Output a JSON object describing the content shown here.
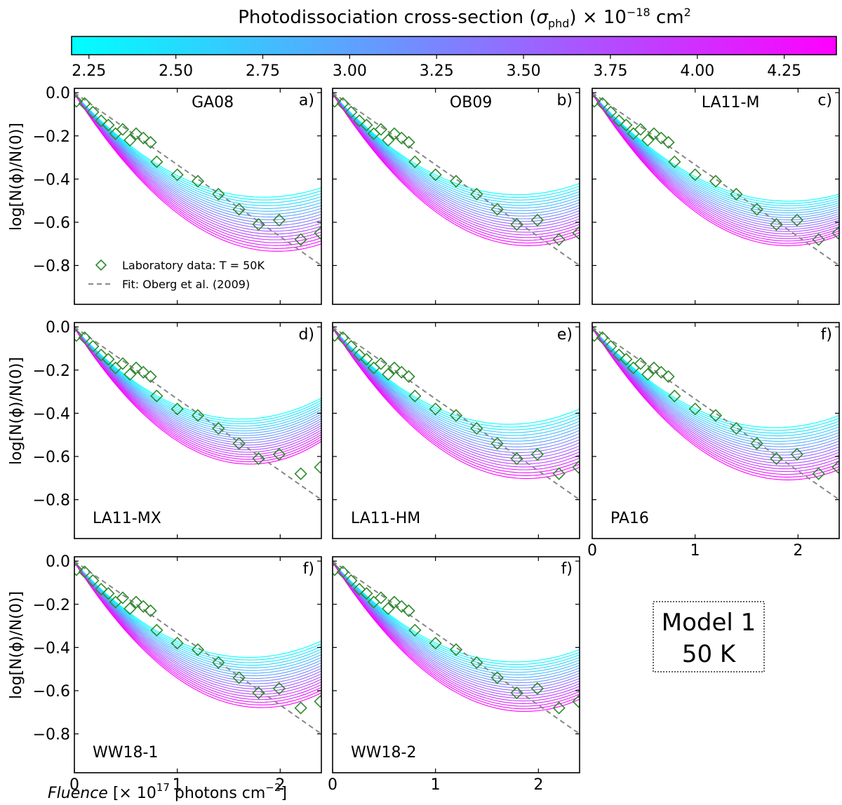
{
  "chart_data": {
    "type": "line",
    "title": "Photodissociation cross-section (σ_phd) × 10⁻¹⁸ cm²",
    "title_parts": {
      "main": "Photodissociation cross-section (",
      "sigma": "σ",
      "sub": "phd",
      "times": ") × 10",
      "exp": "−18",
      "unit": " cm",
      "unit_exp": "2"
    },
    "colorbar": {
      "range": [
        2.2,
        4.4
      ],
      "ticks": [
        "2.25",
        "2.50",
        "2.75",
        "3.00",
        "3.25",
        "3.50",
        "3.75",
        "4.00",
        "4.25"
      ],
      "colors": [
        "#00ffff",
        "#ff00ff"
      ]
    },
    "xlabel": "Fluence [× 10¹⁷ photons cm⁻²]",
    "xlabel_parts": {
      "italic": "Fluence",
      "pre": " [× 10",
      "exp": "17",
      "mid": " photons cm",
      "exp2": "−2",
      "post": "]"
    },
    "ylabel": "log[N(ϕ)/N(0)]",
    "xlim": [
      0,
      2.4
    ],
    "ylim": [
      -0.98,
      0.02
    ],
    "x_ticks": [
      "0",
      "1",
      "2"
    ],
    "y_ticks": [
      "0.0",
      "−0.2",
      "−0.4",
      "−0.6",
      "−0.8"
    ],
    "x_tick_values": [
      0,
      1,
      2
    ],
    "y_tick_values": [
      0.0,
      -0.2,
      -0.4,
      -0.6,
      -0.8
    ],
    "lab_data": {
      "name": "Laboratory data: T = 50K",
      "color": "#2e8b2e",
      "x": [
        0.02,
        0.1,
        0.18,
        0.26,
        0.33,
        0.4,
        0.47,
        0.54,
        0.6,
        0.67,
        0.74,
        0.8,
        1.0,
        1.2,
        1.4,
        1.6,
        1.79,
        1.99,
        2.2,
        2.39
      ],
      "y": [
        -0.04,
        -0.05,
        -0.09,
        -0.13,
        -0.15,
        -0.19,
        -0.17,
        -0.22,
        -0.19,
        -0.21,
        -0.23,
        -0.32,
        -0.38,
        -0.41,
        -0.47,
        -0.54,
        -0.61,
        -0.59,
        -0.68,
        -0.65
      ]
    },
    "fit": {
      "name": "Fit: Oberg et al. (2009)",
      "x": [
        0,
        2.4
      ],
      "y": [
        0.0,
        -0.8
      ],
      "color": "#888888"
    },
    "panels": [
      {
        "name": "GA08",
        "letter": "a)",
        "label_pos": "top",
        "y_end_range": [
          -0.44,
          -0.7
        ]
      },
      {
        "name": "OB09",
        "letter": "b)",
        "label_pos": "top",
        "y_end_range": [
          -0.42,
          -0.66
        ]
      },
      {
        "name": "LA11-M",
        "letter": "c)",
        "label_pos": "top",
        "y_end_range": [
          -0.47,
          -0.66
        ]
      },
      {
        "name": "LA11-MX",
        "letter": "d)",
        "label_pos": "bottom",
        "y_end_range": [
          -0.33,
          -0.53
        ]
      },
      {
        "name": "LA11-HM",
        "letter": "e)",
        "label_pos": "bottom",
        "y_end_range": [
          -0.38,
          -0.65
        ]
      },
      {
        "name": "PA16",
        "letter": "f)",
        "label_pos": "bottom",
        "y_end_range": [
          -0.41,
          -0.66
        ]
      },
      {
        "name": "WW18-1",
        "letter": "f)",
        "label_pos": "bottom",
        "y_end_range": [
          -0.37,
          -0.61
        ]
      },
      {
        "name": "WW18-2",
        "letter": "f)",
        "label_pos": "bottom",
        "y_end_range": [
          -0.41,
          -0.64
        ]
      }
    ],
    "n_curves": 20,
    "annotation": {
      "line1": "Model 1",
      "line2": "50 K"
    }
  }
}
